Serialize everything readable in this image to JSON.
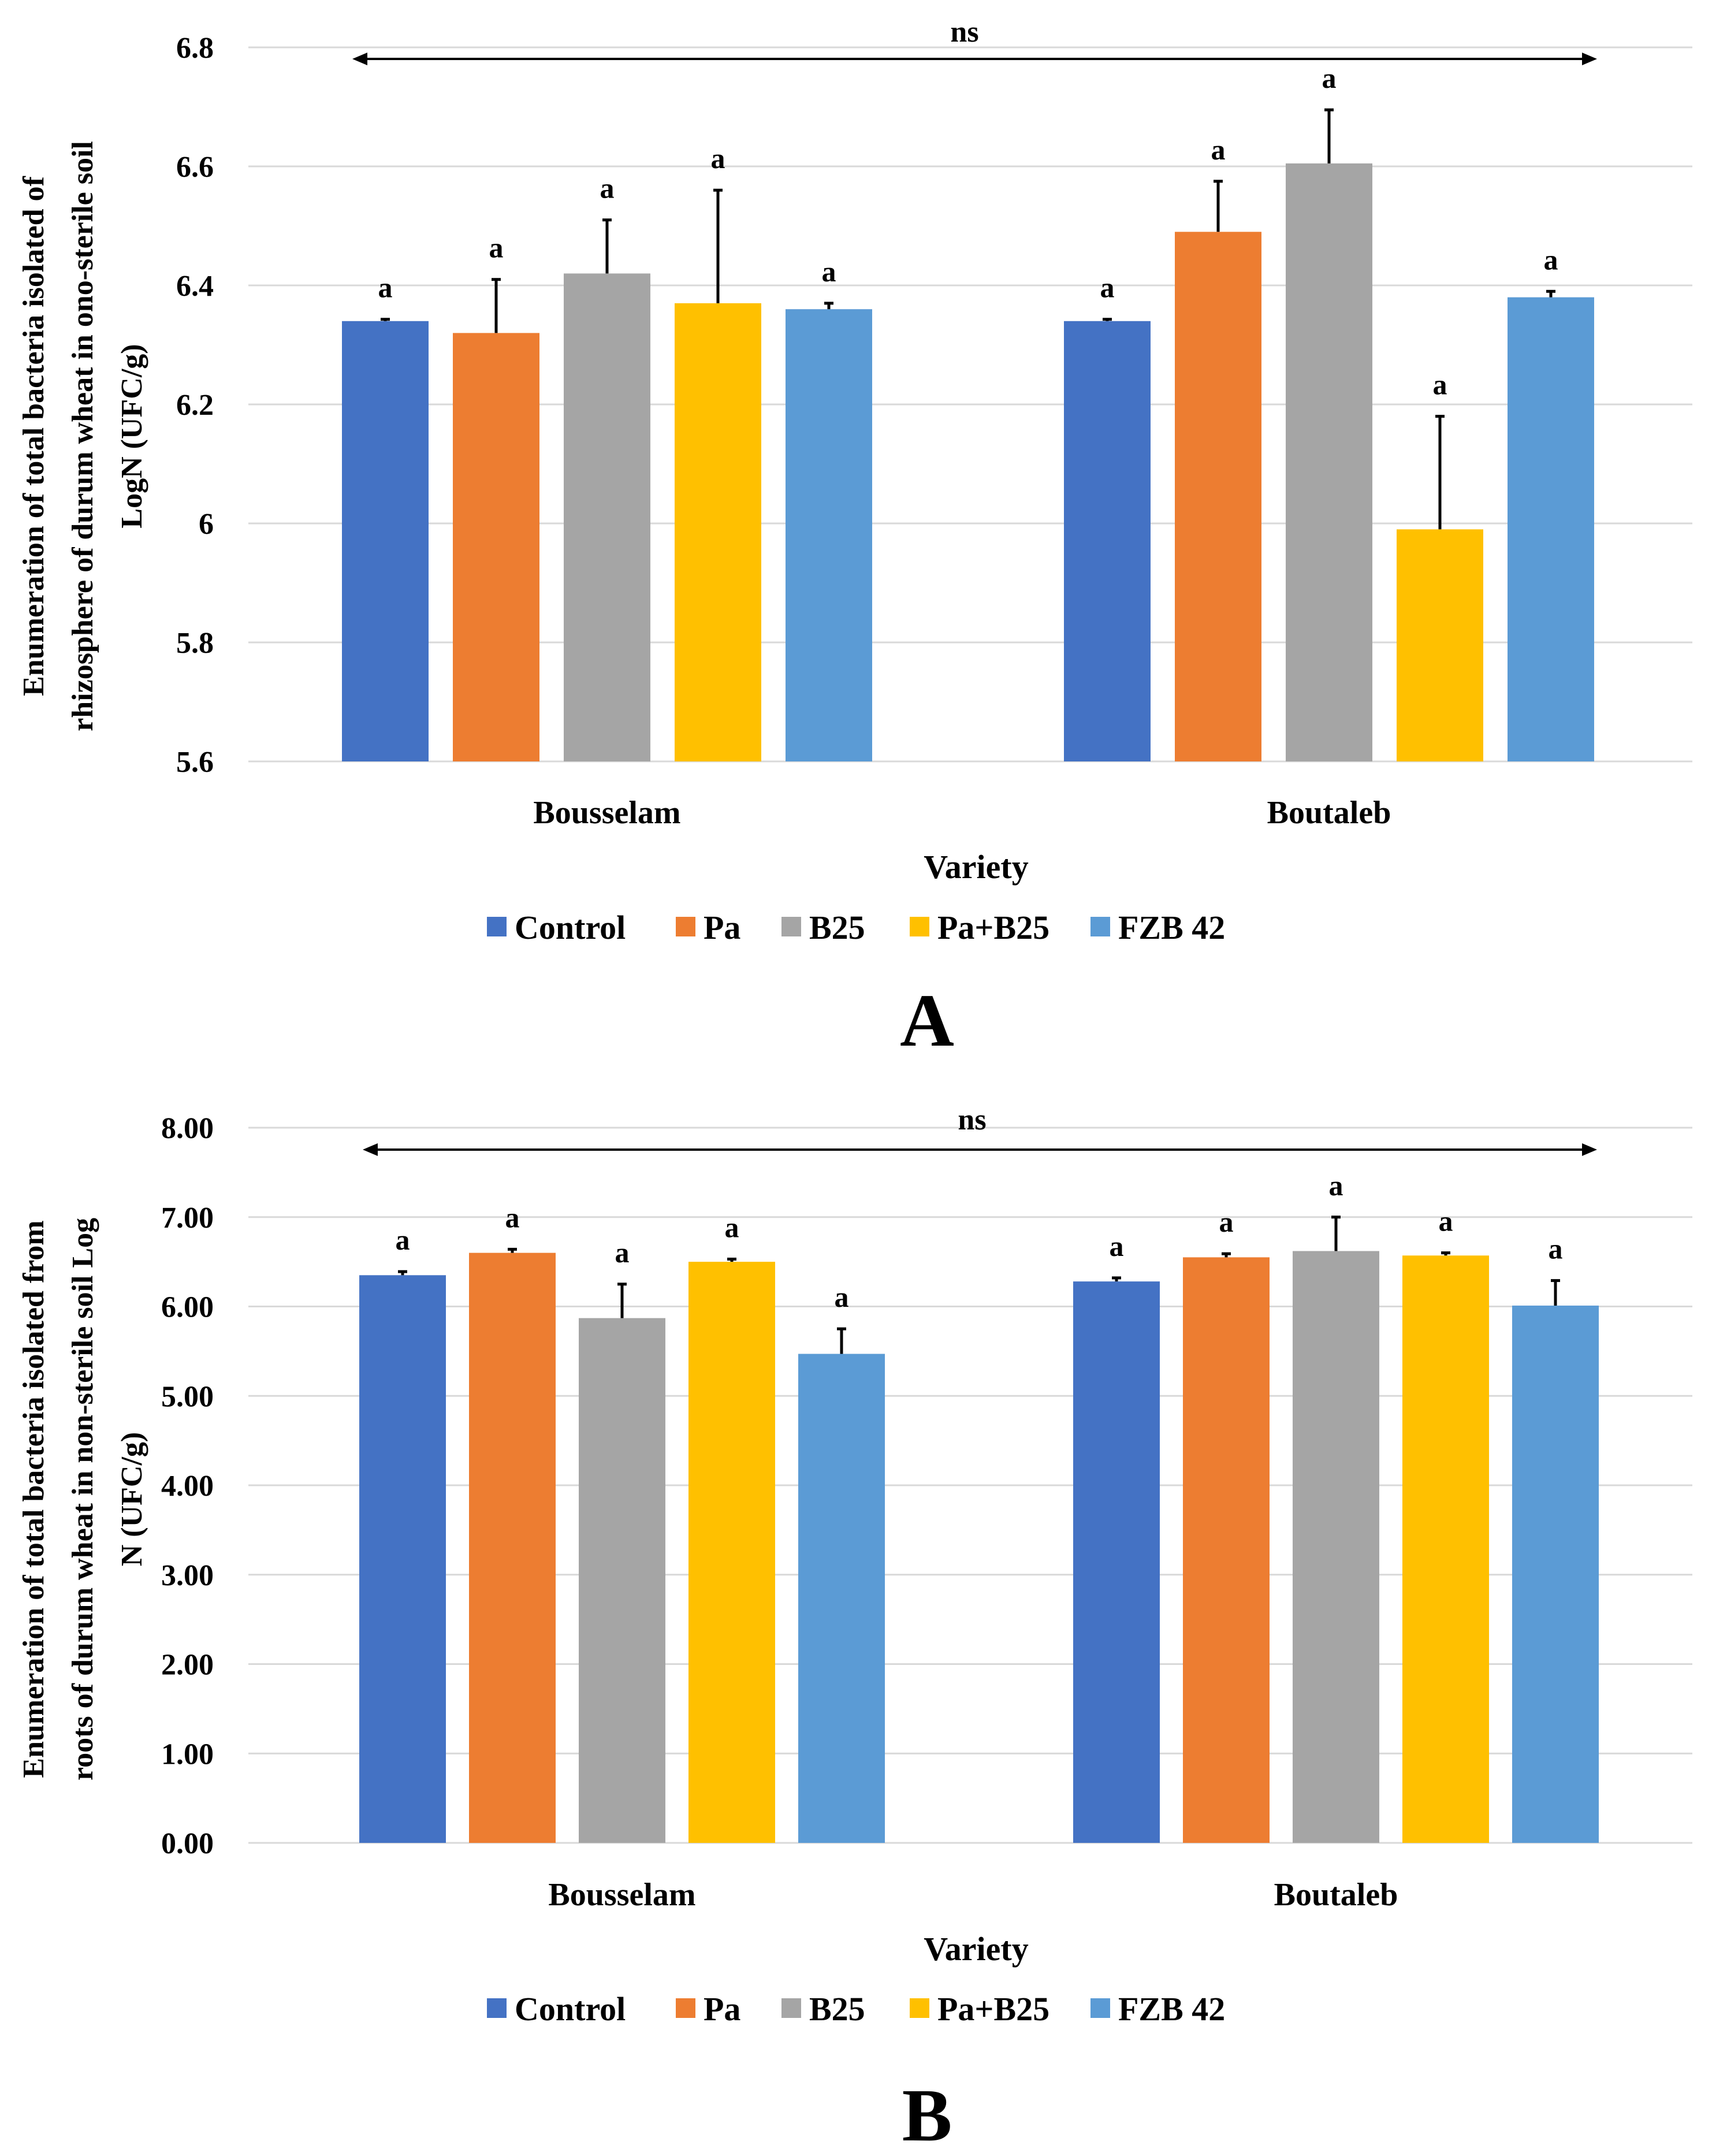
{
  "legend_colors": [
    "#4472C4",
    "#ED7D31",
    "#A5A5A5",
    "#FFC000",
    "#5B9BD5"
  ],
  "error_bar_color": "#000000",
  "grid_color": "#D9D9D9",
  "chart_data": [
    {
      "type": "bar",
      "panel_label": "A",
      "ylabel_lines": [
        "Enumeration of total bacteria  isolated of",
        "rhizosphere of durum wheat in ono-sterile soil",
        "LogN (UFC/g)"
      ],
      "xlabel": "Variety",
      "categories": [
        "Bousselam",
        "Boutaleb"
      ],
      "ylim": [
        5.6,
        6.8
      ],
      "yticks": [
        5.6,
        5.8,
        6.0,
        6.2,
        6.4,
        6.6,
        6.8
      ],
      "ytick_labels": [
        "5.6",
        "5.8",
        "6",
        "6.2",
        "6.4",
        "6.6",
        "6.8"
      ],
      "grid": true,
      "legend_position": "bottom",
      "annotation": "ns",
      "series": [
        {
          "name": "Control",
          "values": [
            6.34,
            6.34
          ],
          "errors": [
            0.003,
            0.003
          ],
          "labels": [
            "a",
            "a"
          ]
        },
        {
          "name": "Pa",
          "values": [
            6.32,
            6.49
          ],
          "errors": [
            0.09,
            0.085
          ],
          "labels": [
            "a",
            "a"
          ]
        },
        {
          "name": "B25",
          "values": [
            6.42,
            6.605
          ],
          "errors": [
            0.09,
            0.09
          ],
          "labels": [
            "a",
            "a"
          ]
        },
        {
          "name": "Pa+B25",
          "values": [
            6.37,
            5.99
          ],
          "errors": [
            0.19,
            0.19
          ],
          "labels": [
            "a",
            "a"
          ]
        },
        {
          "name": "FZB 42",
          "values": [
            6.36,
            6.38
          ],
          "errors": [
            0.01,
            0.01
          ],
          "labels": [
            "a",
            "a"
          ]
        }
      ]
    },
    {
      "type": "bar",
      "panel_label": "B",
      "ylabel_lines": [
        "Enumeration of total bacteria  isolated from",
        "roots of durum wheat in non-sterile soil  Log",
        "N (UFC/g)"
      ],
      "xlabel": "Variety",
      "categories": [
        "Bousselam",
        "Boutaleb"
      ],
      "ylim": [
        0,
        8
      ],
      "yticks": [
        0,
        1,
        2,
        3,
        4,
        5,
        6,
        7,
        8
      ],
      "ytick_labels": [
        "0.00",
        "1.00",
        "2.00",
        "3.00",
        "4.00",
        "5.00",
        "6.00",
        "7.00",
        "8.00"
      ],
      "grid": true,
      "legend_position": "bottom",
      "annotation": "ns",
      "series": [
        {
          "name": "Control",
          "values": [
            6.35,
            6.28
          ],
          "errors": [
            0.04,
            0.04
          ],
          "labels": [
            "a",
            "a"
          ]
        },
        {
          "name": "Pa",
          "values": [
            6.6,
            6.55
          ],
          "errors": [
            0.04,
            0.04
          ],
          "labels": [
            "a",
            "a"
          ]
        },
        {
          "name": "B25",
          "values": [
            5.87,
            6.62
          ],
          "errors": [
            0.38,
            0.38
          ],
          "labels": [
            "a",
            "a"
          ]
        },
        {
          "name": "Pa+B25",
          "values": [
            6.5,
            6.57
          ],
          "errors": [
            0.03,
            0.03
          ],
          "labels": [
            "a",
            "a"
          ]
        },
        {
          "name": "FZB 42",
          "values": [
            5.47,
            6.01
          ],
          "errors": [
            0.28,
            0.28
          ],
          "labels": [
            "a",
            "a"
          ]
        }
      ]
    }
  ]
}
